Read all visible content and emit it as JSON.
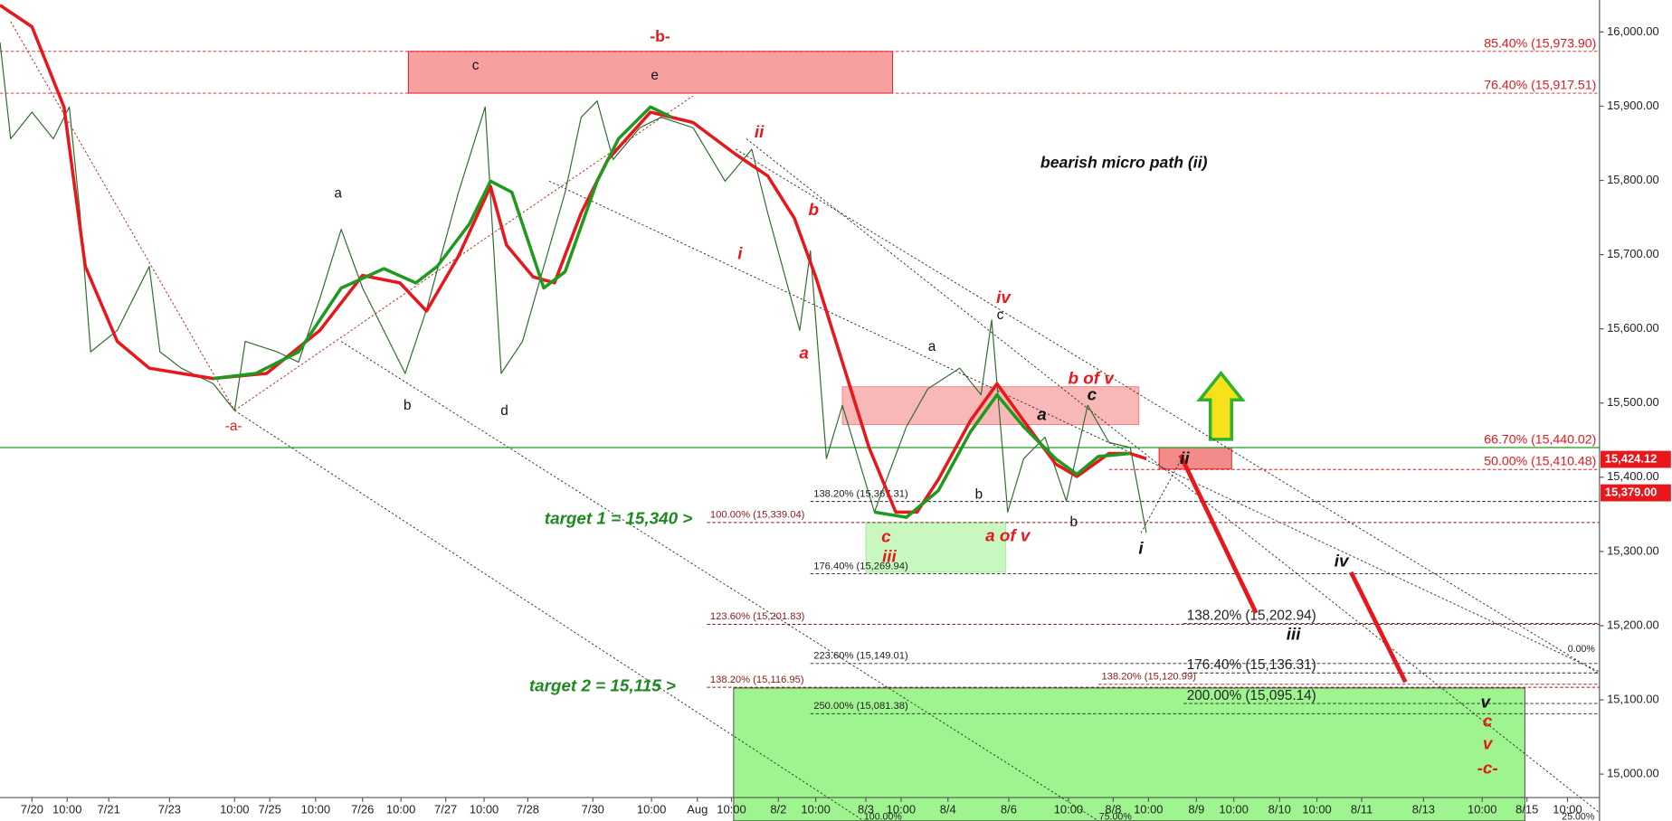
{
  "chart_data": {
    "type": "line",
    "title": "bearish micro path (ii)",
    "xlim": [
      0,
      1500
    ],
    "ylim": [
      14936.8,
      16043.1
    ],
    "xticks": [
      {
        "value": 30,
        "label": "7/20"
      },
      {
        "value": 63,
        "label": "10:00"
      },
      {
        "value": 102,
        "label": "7/21"
      },
      {
        "value": 159,
        "label": "7/23"
      },
      {
        "value": 220,
        "label": "10:00"
      },
      {
        "value": 253,
        "label": "7/25"
      },
      {
        "value": 296,
        "label": "10:00"
      },
      {
        "value": 340,
        "label": "7/26"
      },
      {
        "value": 376,
        "label": "10:00"
      },
      {
        "value": 418,
        "label": "7/27"
      },
      {
        "value": 454,
        "label": "10:00"
      },
      {
        "value": 495,
        "label": "7/28"
      },
      {
        "value": 556,
        "label": "7/30"
      },
      {
        "value": 611,
        "label": "10:00"
      },
      {
        "value": 654,
        "label": "Aug"
      },
      {
        "value": 686,
        "label": "10:00"
      },
      {
        "value": 730,
        "label": "8/2"
      },
      {
        "value": 765,
        "label": "10:00"
      },
      {
        "value": 812,
        "label": "8/3"
      },
      {
        "value": 845,
        "label": "10:00"
      },
      {
        "value": 889,
        "label": "8/4"
      },
      {
        "value": 946,
        "label": "8/6"
      },
      {
        "value": 1002,
        "label": "10:00"
      },
      {
        "value": 1044,
        "label": "8/8"
      },
      {
        "value": 1077,
        "label": "10:00"
      },
      {
        "value": 1122,
        "label": "8/9"
      },
      {
        "value": 1157,
        "label": "10:00"
      },
      {
        "value": 1200,
        "label": "8/10"
      },
      {
        "value": 1235,
        "label": "10:00"
      },
      {
        "value": 1277,
        "label": "8/11"
      },
      {
        "value": 1335,
        "label": "8/13"
      },
      {
        "value": 1390,
        "label": "10:00"
      },
      {
        "value": 1432,
        "label": "8/15"
      },
      {
        "value": 1470,
        "label": "10:00"
      }
    ],
    "yticks": [
      {
        "value": 15000,
        "label": "15,000.00"
      },
      {
        "value": 15100,
        "label": "15,100.00"
      },
      {
        "value": 15200,
        "label": "15,200.00"
      },
      {
        "value": 15300,
        "label": "15,300.00"
      },
      {
        "value": 15400,
        "label": "15,400.00"
      },
      {
        "value": 15500,
        "label": "15,500.00"
      },
      {
        "value": 15600,
        "label": "15,600.00"
      },
      {
        "value": 15700,
        "label": "15,700.00"
      },
      {
        "value": 15800,
        "label": "15,800.00"
      },
      {
        "value": 15900,
        "label": "15,900.00"
      },
      {
        "value": 16000,
        "label": "16,000.00"
      }
    ],
    "series": [
      {
        "color": "#2f6b2f",
        "width": 1,
        "x": [
          0,
          10,
          30,
          50,
          65,
          75,
          85,
          110,
          140,
          150,
          170,
          200,
          220,
          230,
          260,
          280,
          300,
          320,
          340,
          380,
          400,
          430,
          455,
          470,
          490,
          510,
          530,
          545,
          560,
          575,
          600,
          620,
          650,
          680,
          705,
          720,
          750,
          760,
          775,
          790,
          820,
          850,
          870,
          900,
          920,
          930,
          945,
          960,
          980,
          1000,
          1020,
          1040,
          1060,
          1075
        ],
        "values": [
          15986,
          15856,
          15892,
          15856,
          15899,
          15756,
          15569,
          15598,
          15684,
          15569,
          15547,
          15526,
          15490,
          15583,
          15569,
          15555,
          15641,
          15734,
          15655,
          15540,
          15626,
          15784,
          15899,
          15540,
          15583,
          15684,
          15784,
          15885,
          15907,
          15828,
          15871,
          15885,
          15871,
          15799,
          15842,
          15756,
          15598,
          15705,
          15425,
          15497,
          15353,
          15468,
          15519,
          15547,
          15511,
          15612,
          15353,
          15425,
          15454,
          15368,
          15497,
          15447,
          15440,
          15325
        ]
      },
      {
        "color": "#e8171c",
        "width": 3,
        "x": [
          0,
          30,
          60,
          80,
          110,
          140,
          170,
          200,
          250,
          300,
          340,
          375,
          400,
          430,
          460,
          475,
          500,
          520,
          545,
          570,
          610,
          650,
          690,
          720,
          745,
          765,
          790,
          815,
          840,
          860,
          880,
          910,
          935,
          960,
          990,
          1010,
          1040,
          1060,
          1075
        ],
        "values": [
          16036,
          16007,
          15899,
          15684,
          15583,
          15547,
          15540,
          15533,
          15540,
          15598,
          15672,
          15662,
          15624,
          15698,
          15792,
          15713,
          15670,
          15662,
          15756,
          15828,
          15892,
          15878,
          15835,
          15806,
          15749,
          15670,
          15555,
          15440,
          15353,
          15353,
          15397,
          15476,
          15526,
          15476,
          15418,
          15401,
          15432,
          15432,
          15425
        ]
      },
      {
        "color": "#1e9a1e",
        "width": 3,
        "x": [
          200,
          240,
          280,
          320,
          360,
          390,
          410,
          440,
          460,
          480,
          510,
          530,
          560,
          580,
          610,
          630
        ],
        "values": [
          15533,
          15540,
          15569,
          15655,
          15681,
          15662,
          15684,
          15741,
          15799,
          15784,
          15655,
          15677,
          15799,
          15856,
          15899,
          15885
        ]
      },
      {
        "color": "#1e9a1e",
        "width": 3,
        "x": [
          820,
          850,
          880,
          910,
          935,
          960,
          990,
          1010,
          1030,
          1060
        ],
        "values": [
          15353,
          15346,
          15382,
          15461,
          15511,
          15468,
          15425,
          15404,
          15428,
          15432
        ]
      }
    ],
    "levels": [
      {
        "value": 15973.9,
        "label": "85.40% (15,973.90)",
        "x0": 0,
        "x1": 1500,
        "color": "#e8171c",
        "align": "right"
      },
      {
        "value": 15917.51,
        "label": "76.40% (15,917.51)",
        "x0": 0,
        "x1": 1500,
        "color": "#e8171c",
        "align": "right"
      },
      {
        "value": 15440.02,
        "label": "66.70% (15,440.02)",
        "x0": 0,
        "x1": 1500,
        "color": "#e8171c",
        "line_color": "#1e9a1e",
        "align": "right"
      },
      {
        "value": 15410.48,
        "label": "50.00% (15,410.48)",
        "x0": 1040,
        "x1": 1500,
        "color": "#e8171c",
        "align": "right"
      },
      {
        "value": 15367.31,
        "label": "138.20% (15,367.31)",
        "x0": 760,
        "x1": 1500,
        "color": "#222222"
      },
      {
        "value": 15339.04,
        "label": "100.00% (15,339.04)",
        "x0": 663,
        "x1": 1500,
        "color": "#8b1a1a"
      },
      {
        "value": 15269.94,
        "label": "176.40% (15,269.94)",
        "x0": 760,
        "x1": 1500,
        "color": "#222222"
      },
      {
        "value": 15201.83,
        "label": "123.60% (15,201.83)",
        "x0": 663,
        "x1": 1500,
        "color": "#8b1a1a"
      },
      {
        "value": 15202.94,
        "label": "138.20% (15,202.94)",
        "x0": 1110,
        "x1": 1500,
        "color": "#222222",
        "big": true
      },
      {
        "value": 15149.01,
        "label": "223.60% (15,149.01)",
        "x0": 760,
        "x1": 1500,
        "color": "#222222"
      },
      {
        "value": 15136.31,
        "label": "176.40% (15,136.31)",
        "x0": 1110,
        "x1": 1500,
        "color": "#222222",
        "big": true
      },
      {
        "value": 15120.99,
        "label": "138.20% (15,120.99)",
        "x0": 1030,
        "x1": 1500,
        "color": "#8b1a1a"
      },
      {
        "value": 15116.95,
        "label": "138.20% (15,116.95)",
        "x0": 663,
        "x1": 1500,
        "color": "#8b1a1a"
      },
      {
        "value": 15095.14,
        "label": "200.00% (15,095.14)",
        "x0": 1110,
        "x1": 1500,
        "color": "#222222",
        "big": true
      },
      {
        "value": 15081.38,
        "label": "250.00% (15,081.38)",
        "x0": 760,
        "x1": 1500,
        "color": "#222222"
      }
    ],
    "zones": [
      {
        "x0": 383,
        "x1": 837,
        "y0": 15917.51,
        "y1": 15973.9,
        "color": "#f7a0a0",
        "stroke": "#e8171c"
      },
      {
        "x0": 790,
        "x1": 1068,
        "y0": 15471,
        "y1": 15522,
        "color": "#f9b8b8",
        "stroke": "#f08080"
      },
      {
        "x0": 812,
        "x1": 943,
        "y0": 15272,
        "y1": 15339,
        "color": "#c8f7c0",
        "stroke": "#a0e8a0"
      },
      {
        "x0": 688,
        "x1": 1430,
        "y0": 14937,
        "y1": 15116,
        "color": "#9ef58f",
        "stroke": "#444444"
      },
      {
        "x0": 1087,
        "x1": 1155,
        "y0": 15411,
        "y1": 15440,
        "color": "#f48b8b",
        "stroke": "#e8171c"
      }
    ],
    "trendlines": [
      {
        "x": [
          10,
          220
        ],
        "y": [
          16014,
          15490
        ],
        "color": "#b22222"
      },
      {
        "x": [
          220,
          650
        ],
        "y": [
          15490,
          15914
        ],
        "color": "#b22222"
      },
      {
        "x": [
          220,
          810
        ],
        "y": [
          15490,
          14937
        ],
        "color": "#333333"
      },
      {
        "x": [
          320,
          1030
        ],
        "y": [
          15583,
          14937
        ],
        "color": "#333333"
      },
      {
        "x": [
          515,
          1500
        ],
        "y": [
          15799,
          15138
        ],
        "color": "#333333"
      },
      {
        "x": [
          700,
          1500
        ],
        "y": [
          15856,
          14948
        ],
        "color": "#333333"
      },
      {
        "x": [
          690,
          1500
        ],
        "y": [
          15842,
          15135
        ],
        "color": "#333333"
      },
      {
        "x": [
          1070,
          1110
        ],
        "y": [
          15325,
          15430
        ],
        "color": "#333333"
      }
    ],
    "arrows": [
      {
        "x": [
          1107,
          1178
        ],
        "y": [
          15430,
          15217
        ],
        "color": "#e8171c"
      },
      {
        "x": [
          1267,
          1318
        ],
        "y": [
          15272,
          15124
        ],
        "color": "#e8171c"
      }
    ],
    "price_tags": [
      {
        "value": 15424.12,
        "label": "15,424.12"
      },
      {
        "value": 15379,
        "label": "15,379.00"
      }
    ],
    "annotations": [
      {
        "text": "-b-",
        "x": 619,
        "y": 15993,
        "color": "#e8171c",
        "style": "bold"
      },
      {
        "text": "c",
        "x": 446,
        "y": 15954,
        "color": "#111111"
      },
      {
        "text": "e",
        "x": 614,
        "y": 15941,
        "color": "#111111"
      },
      {
        "text": "a",
        "x": 317,
        "y": 15782,
        "color": "#111111"
      },
      {
        "text": "b",
        "x": 382,
        "y": 15496,
        "color": "#111111"
      },
      {
        "text": "d",
        "x": 473,
        "y": 15489,
        "color": "#111111"
      },
      {
        "text": "-a-",
        "x": 219,
        "y": 15468,
        "color": "#e8171c"
      },
      {
        "text": "ii",
        "x": 712,
        "y": 15864,
        "color": "#e8171c",
        "style": "italic"
      },
      {
        "text": "b",
        "x": 763,
        "y": 15759,
        "color": "#e8171c",
        "style": "italic"
      },
      {
        "text": "i",
        "x": 694,
        "y": 15700,
        "color": "#e8171c",
        "style": "italic"
      },
      {
        "text": "a",
        "x": 754,
        "y": 15566,
        "color": "#e8171c",
        "style": "italic"
      },
      {
        "text": "iv",
        "x": 941,
        "y": 15641,
        "color": "#e8171c",
        "style": "italic"
      },
      {
        "text": "c",
        "x": 938,
        "y": 15618,
        "color": "#111111"
      },
      {
        "text": "a",
        "x": 874,
        "y": 15575,
        "color": "#111111"
      },
      {
        "text": "b of v",
        "x": 1023,
        "y": 15532,
        "color": "#e8171c",
        "style": "italic"
      },
      {
        "text": "a",
        "x": 977,
        "y": 15483,
        "color": "#111111",
        "style": "italic"
      },
      {
        "text": "c",
        "x": 1024,
        "y": 15510,
        "color": "#111111",
        "style": "italic"
      },
      {
        "text": "b",
        "x": 918,
        "y": 15376,
        "color": "#111111"
      },
      {
        "text": "b",
        "x": 1007,
        "y": 15339,
        "color": "#111111"
      },
      {
        "text": "a of v",
        "x": 945,
        "y": 15320,
        "color": "#e8171c",
        "style": "italic"
      },
      {
        "text": "c",
        "x": 831,
        "y": 15319,
        "color": "#e8171c",
        "style": "italic"
      },
      {
        "text": "iii",
        "x": 834,
        "y": 15292,
        "color": "#e8171c",
        "style": "italic"
      },
      {
        "text": "i",
        "x": 1070,
        "y": 15303,
        "color": "#111111",
        "style": "italic"
      },
      {
        "text": "ii",
        "x": 1111,
        "y": 15424,
        "color": "#111111",
        "style": "italic"
      },
      {
        "text": "iv",
        "x": 1258,
        "y": 15286,
        "color": "#111111",
        "style": "italic"
      },
      {
        "text": "iii",
        "x": 1213,
        "y": 15187,
        "color": "#111111",
        "style": "italic"
      },
      {
        "text": "v",
        "x": 1393,
        "y": 15096,
        "color": "#111111",
        "style": "italic"
      },
      {
        "text": "c",
        "x": 1395,
        "y": 15070,
        "color": "#e8171c",
        "style": "italic"
      },
      {
        "text": "v",
        "x": 1395,
        "y": 15040,
        "color": "#e8171c",
        "style": "italic"
      },
      {
        "text": "-c-",
        "x": 1395,
        "y": 15007,
        "color": "#e8171c",
        "style": "italic"
      },
      {
        "text": "bearish micro path (ii)",
        "x": 1054,
        "y": 15823,
        "color": "#111111",
        "style": "title"
      },
      {
        "text": "target 1 = 15,340 >",
        "x": 580,
        "y": 15343,
        "color": "#1e8a1e",
        "style": "target"
      },
      {
        "text": "target 2 = 15,115 >",
        "x": 565,
        "y": 15118,
        "color": "#1e8a1e",
        "style": "target"
      },
      {
        "text": "100.00%",
        "x": 828,
        "y": 14942,
        "color": "#222222",
        "style": "small"
      },
      {
        "text": "75.00%",
        "x": 1046,
        "y": 14942,
        "color": "#222222",
        "style": "small"
      },
      {
        "text": "25.00%",
        "x": 1480,
        "y": 14942,
        "color": "#222222",
        "style": "small"
      },
      {
        "text": "0.00%",
        "x": 1483,
        "y": 15168,
        "color": "#222222",
        "style": "small"
      }
    ]
  }
}
